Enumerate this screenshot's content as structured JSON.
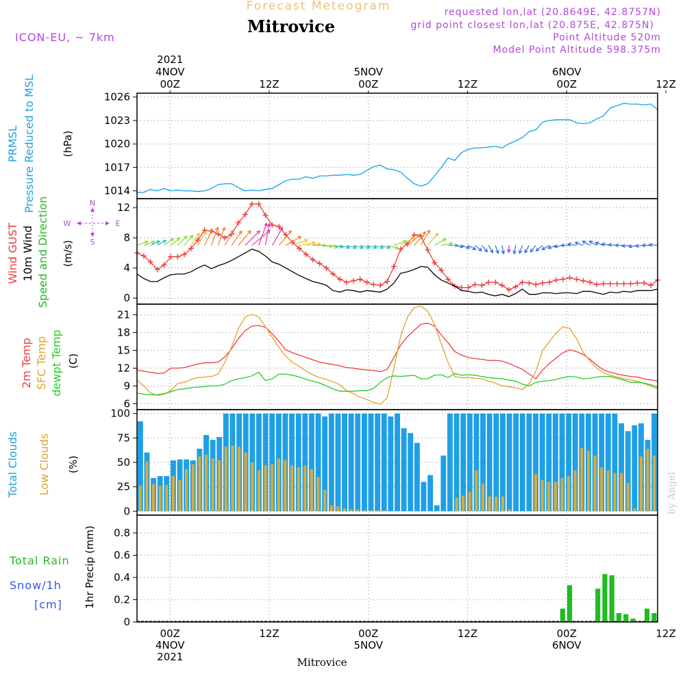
{
  "header": {
    "forecast_title": "Forecast Meteogram",
    "location": "Mitrovice",
    "model": "ICON-EU, ~ 7km",
    "requested": "requested lon,lat (20.8649E, 42.8757N)",
    "grid_point": "grid point closest lon,lat (20.875E, 42.875N)",
    "point_altitude": "Point Altitude 520m",
    "model_altitude": "Model Point Altitude 598.375m"
  },
  "footer": {
    "location": "Mitrovice",
    "credit": "by Angel"
  },
  "time_axis": {
    "start_hour": -4,
    "end_hour": 59,
    "top_labels": [
      {
        "h": 0,
        "lines": [
          "2021",
          "4NOV",
          "00Z"
        ]
      },
      {
        "h": 12,
        "lines": [
          "12Z"
        ]
      },
      {
        "h": 24,
        "lines": [
          "5NOV",
          "00Z"
        ]
      },
      {
        "h": 36,
        "lines": [
          "12Z"
        ]
      },
      {
        "h": 48,
        "lines": [
          "6NOV",
          "00Z"
        ]
      },
      {
        "h": 60,
        "lines": [
          "12Z"
        ]
      }
    ],
    "bottom_labels": [
      {
        "h": 0,
        "lines": [
          "00Z",
          "4NOV",
          "2021"
        ]
      },
      {
        "h": 12,
        "lines": [
          "12Z"
        ]
      },
      {
        "h": 24,
        "lines": [
          "00Z",
          "5NOV"
        ]
      },
      {
        "h": 36,
        "lines": [
          "12Z"
        ]
      },
      {
        "h": 48,
        "lines": [
          "00Z",
          "6NOV"
        ]
      },
      {
        "h": 60,
        "lines": [
          "12Z"
        ]
      }
    ]
  },
  "colors": {
    "pressure": "#0ea5e9",
    "gust": "#ef3b3b",
    "wind": "#000000",
    "wind_dir": "#22b822",
    "temp2m": "#ef3b3b",
    "sfc": "#dfa22a",
    "dew": "#22cc22",
    "total_clouds": "#1e9fe6",
    "low_clouds": "#d9ab3e",
    "rain": "#22bb22",
    "snow": "#3355ee",
    "precip_label": "#000000",
    "compass": "#b347d9",
    "header": "#b347d9",
    "forecast": "#f0c070"
  },
  "chart_data": [
    {
      "type": "line",
      "panel": "pressure",
      "title": "",
      "ylabels": [
        "PRMSL",
        "Pressure Reduced to MSL",
        "(hPa)"
      ],
      "ylim": [
        1013,
        1026.5
      ],
      "yticks": [
        1014,
        1017,
        1020,
        1023,
        1026
      ],
      "series": [
        {
          "name": "PRMSL",
          "color": "#0ea5e9",
          "values": [
            1013.8,
            1013.8,
            1014.2,
            1014.0,
            1014.3,
            1014.0,
            1014.1,
            1014.0,
            1014.0,
            1013.9,
            1014.0,
            1014.3,
            1014.8,
            1014.9,
            1014.9,
            1014.4,
            1014.0,
            1014.1,
            1014.0,
            1014.2,
            1014.3,
            1014.8,
            1015.3,
            1015.5,
            1015.5,
            1015.8,
            1015.6,
            1015.9,
            1015.9,
            1016.0,
            1016.0,
            1016.1,
            1016.0,
            1016.1,
            1016.6,
            1017.1,
            1017.3,
            1016.8,
            1016.7,
            1016.4,
            1015.6,
            1014.9,
            1014.6,
            1014.9,
            1015.9,
            1017.0,
            1018.2,
            1017.9,
            1018.9,
            1019.3,
            1019.5,
            1019.5,
            1019.6,
            1019.7,
            1019.5,
            1020.0,
            1020.4,
            1020.8,
            1021.6,
            1021.8,
            1022.8,
            1023.0,
            1023.1,
            1023.1,
            1023.1,
            1022.7,
            1022.6,
            1022.7,
            1023.2,
            1023.6,
            1024.6,
            1024.9,
            1025.2,
            1025.1,
            1025.1,
            1025.0,
            1025.1,
            1024.4
          ]
        }
      ]
    },
    {
      "type": "line",
      "panel": "wind",
      "title": "",
      "ylabels": [
        "Wind GUST",
        "10m Wind",
        "Speed and Direction",
        "(m/s)"
      ],
      "compass": {
        "n": "N",
        "s": "S",
        "w": "W",
        "e": "E"
      },
      "ylim": [
        -0.8,
        13.2
      ],
      "yticks": [
        0,
        4,
        8,
        12
      ],
      "series": [
        {
          "name": "Wind GUST",
          "color": "#ef3b3b",
          "values": [
            6.0,
            5.6,
            4.8,
            3.8,
            4.4,
            5.5,
            5.5,
            5.8,
            6.6,
            7.7,
            9.0,
            8.9,
            8.5,
            8.0,
            8.5,
            10.0,
            11.1,
            12.5,
            12.5,
            11.0,
            9.7,
            9.5,
            8.4,
            7.4,
            6.6,
            5.8,
            5.1,
            4.6,
            4.0,
            3.2,
            2.5,
            2.1,
            2.3,
            2.5,
            2.1,
            1.8,
            1.7,
            2.2,
            4.2,
            6.5,
            7.2,
            8.4,
            8.2,
            6.4,
            4.7,
            3.7,
            2.5,
            1.6,
            1.4,
            1.4,
            1.8,
            1.7,
            2.1,
            2.1,
            1.7,
            1.1,
            1.5,
            2.1,
            2.0,
            1.8,
            2.0,
            2.1,
            2.4,
            2.5,
            2.7,
            2.5,
            2.3,
            2.1,
            1.8,
            1.9,
            1.9,
            1.9,
            1.9,
            1.9,
            2.0,
            2.0,
            1.7,
            2.4
          ]
        },
        {
          "name": "10m Wind",
          "color": "#000000",
          "values": [
            3.2,
            2.6,
            2.2,
            2.2,
            2.7,
            3.1,
            3.2,
            3.2,
            3.5,
            4.0,
            4.4,
            3.9,
            4.3,
            4.6,
            5.0,
            5.5,
            6.0,
            6.5,
            6.2,
            5.6,
            4.8,
            4.5,
            4.0,
            3.5,
            3.0,
            2.6,
            2.2,
            2.0,
            1.7,
            1.0,
            0.8,
            1.1,
            1.0,
            0.8,
            1.0,
            0.9,
            0.8,
            1.2,
            2.0,
            3.3,
            3.5,
            3.8,
            4.2,
            4.1,
            3.1,
            2.4,
            2.0,
            1.6,
            1.0,
            0.9,
            0.7,
            0.8,
            0.5,
            0.3,
            0.5,
            0.2,
            0.6,
            1.2,
            0.5,
            0.5,
            0.7,
            0.7,
            0.6,
            0.7,
            0.7,
            0.6,
            0.9,
            0.9,
            0.7,
            0.5,
            0.8,
            0.7,
            0.9,
            0.8,
            1.0,
            1.0,
            1.0,
            1.2
          ]
        }
      ],
      "arrows": {
        "level": 7.0,
        "directions_deg": [
          250,
          250,
          245,
          240,
          235,
          230,
          225,
          220,
          215,
          210,
          205,
          200,
          200,
          210,
          215,
          220,
          225,
          230,
          200,
          190,
          210,
          220,
          240,
          250,
          260,
          265,
          270,
          275,
          280,
          280,
          285,
          285,
          285,
          285,
          285,
          285,
          285,
          285,
          250,
          240,
          230,
          220,
          210,
          220,
          240,
          260,
          270,
          280,
          290,
          300,
          310,
          320,
          330,
          340,
          350,
          0,
          10,
          20,
          30,
          40,
          50,
          60,
          70,
          80,
          90,
          100,
          110,
          120,
          120,
          110,
          100,
          95,
          90,
          85,
          80,
          85,
          90,
          95
        ],
        "speeds": [
          4,
          4,
          3,
          3,
          4,
          4,
          5,
          5,
          6,
          7,
          8,
          9,
          9,
          8,
          8,
          9,
          10,
          12,
          12,
          11,
          10,
          9,
          8,
          7,
          7,
          6,
          5,
          5,
          4,
          3,
          3,
          3,
          3,
          3,
          3,
          3,
          3,
          4,
          5,
          7,
          8,
          8,
          8,
          7,
          5,
          4,
          3,
          2,
          2,
          2,
          2,
          2,
          2,
          2,
          2,
          1,
          2,
          2,
          2,
          2,
          2,
          2,
          2,
          2,
          2,
          2,
          2,
          2,
          2,
          2,
          2,
          2,
          2,
          2,
          2,
          2,
          2,
          2
        ]
      }
    },
    {
      "type": "line",
      "panel": "temperature",
      "title": "",
      "ylabels": [
        "2m Temp",
        "SFC Temp",
        "dewpt Temp",
        "(C)"
      ],
      "ylim": [
        5,
        22.8
      ],
      "yticks": [
        6,
        9,
        12,
        15,
        18,
        21
      ],
      "series": [
        {
          "name": "2m Temp",
          "color": "#ef3b3b",
          "values": [
            11.7,
            11.5,
            11.3,
            11.1,
            11.2,
            12.0,
            12.0,
            12.1,
            12.4,
            12.7,
            12.9,
            12.9,
            13.0,
            13.9,
            15.3,
            17.0,
            18.3,
            19.1,
            19.2,
            18.9,
            17.8,
            16.5,
            15.1,
            14.6,
            14.2,
            13.8,
            13.4,
            13.0,
            12.8,
            12.6,
            12.4,
            12.1,
            12.0,
            11.8,
            11.7,
            11.6,
            11.4,
            11.8,
            13.8,
            15.9,
            17.3,
            18.4,
            19.4,
            19.6,
            19.1,
            17.6,
            16.3,
            14.8,
            14.2,
            13.8,
            13.6,
            13.5,
            13.3,
            13.3,
            13.2,
            12.8,
            12.3,
            11.8,
            11.0,
            10.2,
            11.7,
            12.8,
            13.7,
            14.6,
            15.1,
            14.8,
            14.3,
            13.5,
            12.5,
            11.7,
            11.3,
            11.0,
            10.8,
            10.6,
            10.5,
            10.2,
            10.0,
            9.8
          ]
        },
        {
          "name": "SFC Temp",
          "color": "#dfa22a",
          "values": [
            10.0,
            9.0,
            7.8,
            7.4,
            7.6,
            8.2,
            9.4,
            9.6,
            10.1,
            10.4,
            10.5,
            10.6,
            11.0,
            13.0,
            15.6,
            18.7,
            20.6,
            21.1,
            20.6,
            19.0,
            17.2,
            15.5,
            14.0,
            13.0,
            12.3,
            11.5,
            10.9,
            10.4,
            10.1,
            9.7,
            9.2,
            8.2,
            7.7,
            7.1,
            6.7,
            6.2,
            5.9,
            7.0,
            12.0,
            17.4,
            20.6,
            22.2,
            22.5,
            21.6,
            19.4,
            16.1,
            13.0,
            10.6,
            10.4,
            10.4,
            10.3,
            10.2,
            9.8,
            9.5,
            9.0,
            8.9,
            8.7,
            8.4,
            9.4,
            11.5,
            15.0,
            16.5,
            17.9,
            19.0,
            18.7,
            17.0,
            14.7,
            13.2,
            12.0,
            11.2,
            10.8,
            10.5,
            10.2,
            10.0,
            9.8,
            9.4,
            9.0,
            8.5
          ]
        },
        {
          "name": "dewpt Temp",
          "color": "#22cc22",
          "values": [
            7.8,
            7.6,
            7.5,
            7.5,
            7.7,
            8.0,
            8.4,
            8.5,
            8.7,
            8.8,
            8.9,
            9.0,
            9.0,
            9.3,
            9.9,
            10.2,
            10.4,
            10.7,
            11.3,
            9.9,
            10.2,
            11.0,
            11.0,
            10.8,
            10.5,
            10.1,
            9.8,
            9.5,
            9.0,
            8.5,
            8.1,
            8.1,
            8.1,
            8.2,
            8.2,
            8.6,
            9.6,
            10.4,
            10.7,
            10.6,
            10.7,
            10.8,
            10.2,
            10.2,
            10.8,
            10.9,
            10.4,
            11.1,
            10.8,
            10.9,
            10.8,
            10.6,
            10.4,
            10.3,
            10.2,
            10.0,
            9.8,
            9.3,
            9.0,
            9.6,
            9.8,
            9.9,
            10.1,
            10.4,
            10.6,
            10.5,
            10.2,
            10.3,
            10.5,
            10.6,
            10.6,
            10.3,
            10.0,
            9.6,
            9.6,
            9.5,
            9.2,
            8.8
          ]
        }
      ]
    },
    {
      "type": "bar",
      "panel": "clouds",
      "title": "",
      "ylabels": [
        "Total Clouds",
        "Low Clouds",
        "(%)"
      ],
      "ylim": [
        -4,
        104
      ],
      "yticks": [
        0,
        25,
        50,
        75,
        100
      ],
      "series": [
        {
          "name": "Total Clouds",
          "color": "#1e9fe6",
          "values": [
            92,
            60,
            34,
            36,
            36,
            52,
            53,
            53,
            52,
            64,
            78,
            73,
            76,
            100,
            100,
            100,
            100,
            100,
            100,
            100,
            100,
            100,
            100,
            100,
            100,
            100,
            100,
            100,
            97,
            100,
            100,
            100,
            100,
            100,
            100,
            100,
            100,
            100,
            97,
            100,
            85,
            80,
            70,
            30,
            37,
            6,
            57,
            100,
            100,
            100,
            100,
            100,
            100,
            100,
            100,
            100,
            100,
            100,
            100,
            100,
            100,
            100,
            100,
            100,
            100,
            100,
            100,
            100,
            100,
            100,
            100,
            100,
            100,
            90,
            82,
            88,
            90,
            73,
            100
          ]
        },
        {
          "name": "Low Clouds",
          "color": "#d9ab3e",
          "values": [
            26,
            51,
            28,
            26,
            27,
            36,
            32,
            43,
            48,
            56,
            58,
            54,
            52,
            66,
            67,
            66,
            60,
            50,
            42,
            47,
            48,
            54,
            52,
            47,
            45,
            47,
            43,
            35,
            22,
            6,
            5,
            3,
            2,
            2,
            1,
            1,
            1,
            1,
            0,
            0,
            0,
            0,
            0,
            0,
            0,
            0,
            0,
            0,
            14,
            16,
            20,
            42,
            28,
            15,
            15,
            15,
            2,
            0,
            0,
            0,
            38,
            32,
            30,
            30,
            34,
            36,
            42,
            65,
            62,
            57,
            45,
            42,
            39,
            39,
            29,
            3,
            56,
            64,
            57
          ]
        }
      ]
    },
    {
      "type": "bar",
      "panel": "precipitation",
      "title": "",
      "ylabels": [
        "Total Rain",
        "Snow/1h",
        "[cm]",
        "1hr Precip (mm)"
      ],
      "ylim": [
        0,
        0.96
      ],
      "yticks": [
        0,
        0.2,
        0.4,
        0.6,
        0.8
      ],
      "series": [
        {
          "name": "Total Rain",
          "color": "#22bb22",
          "values": [
            0,
            0,
            0,
            0,
            0,
            0,
            0,
            0,
            0,
            0,
            0,
            0,
            0,
            0,
            0,
            0,
            0,
            0,
            0,
            0,
            0,
            0,
            0,
            0,
            0,
            0,
            0,
            0,
            0,
            0,
            0,
            0,
            0,
            0,
            0,
            0,
            0,
            0,
            0,
            0,
            0,
            0,
            0,
            0,
            0,
            0,
            0,
            0,
            0,
            0,
            0,
            0,
            0.01,
            0,
            0,
            0,
            0,
            0,
            0,
            0,
            0.12,
            0.33,
            0,
            0,
            0,
            0.3,
            0.43,
            0.42,
            0.08,
            0.07,
            0.03,
            0,
            0.12,
            0.08
          ]
        }
      ]
    }
  ]
}
